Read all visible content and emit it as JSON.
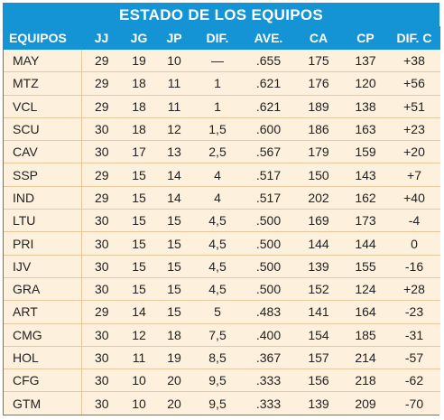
{
  "title": "ESTADO DE LOS EQUIPOS",
  "headers": [
    "EQUIPOS",
    "JJ",
    "JG",
    "JP",
    "DIF.",
    "AVE.",
    "CA",
    "CP",
    "DIF. C"
  ],
  "rows": [
    [
      "MAY",
      "29",
      "19",
      "10",
      "—",
      ".655",
      "175",
      "137",
      "+38"
    ],
    [
      "MTZ",
      "29",
      "18",
      "11",
      "1",
      ".621",
      "176",
      "120",
      "+56"
    ],
    [
      "VCL",
      "29",
      "18",
      "11",
      "1",
      ".621",
      "189",
      "138",
      "+51"
    ],
    [
      "SCU",
      "30",
      "18",
      "12",
      "1,5",
      ".600",
      "186",
      "163",
      "+23"
    ],
    [
      "CAV",
      "30",
      "17",
      "13",
      "2,5",
      ".567",
      "179",
      "159",
      "+20"
    ],
    [
      "SSP",
      "29",
      "15",
      "14",
      "4",
      ".517",
      "150",
      "143",
      "+7"
    ],
    [
      "IND",
      "29",
      "15",
      "14",
      "4",
      ".517",
      "202",
      "162",
      "+40"
    ],
    [
      "LTU",
      "30",
      "15",
      "15",
      "4,5",
      ".500",
      "169",
      "173",
      "-4"
    ],
    [
      "PRI",
      "30",
      "15",
      "15",
      "4,5",
      ".500",
      "144",
      "144",
      "0"
    ],
    [
      "IJV",
      "30",
      "15",
      "15",
      "4,5",
      ".500",
      "139",
      "155",
      "-16"
    ],
    [
      "GRA",
      "30",
      "15",
      "15",
      "4,5",
      ".500",
      "152",
      "124",
      "+28"
    ],
    [
      "ART",
      "29",
      "14",
      "15",
      "5",
      ".483",
      "141",
      "164",
      "-23"
    ],
    [
      "CMG",
      "30",
      "12",
      "18",
      "7,5",
      ".400",
      "154",
      "185",
      "-31"
    ],
    [
      "HOL",
      "30",
      "11",
      "19",
      "8,5",
      ".367",
      "157",
      "214",
      "-57"
    ],
    [
      "CFG",
      "30",
      "10",
      "20",
      "9,5",
      ".333",
      "156",
      "218",
      "-62"
    ],
    [
      "GTM",
      "30",
      "10",
      "20",
      "9,5",
      ".333",
      "139",
      "209",
      "-70"
    ]
  ],
  "colors": {
    "header_bg": "#1594d5",
    "row_bg": "#fdf0dc",
    "divider": "#e7c79c"
  }
}
